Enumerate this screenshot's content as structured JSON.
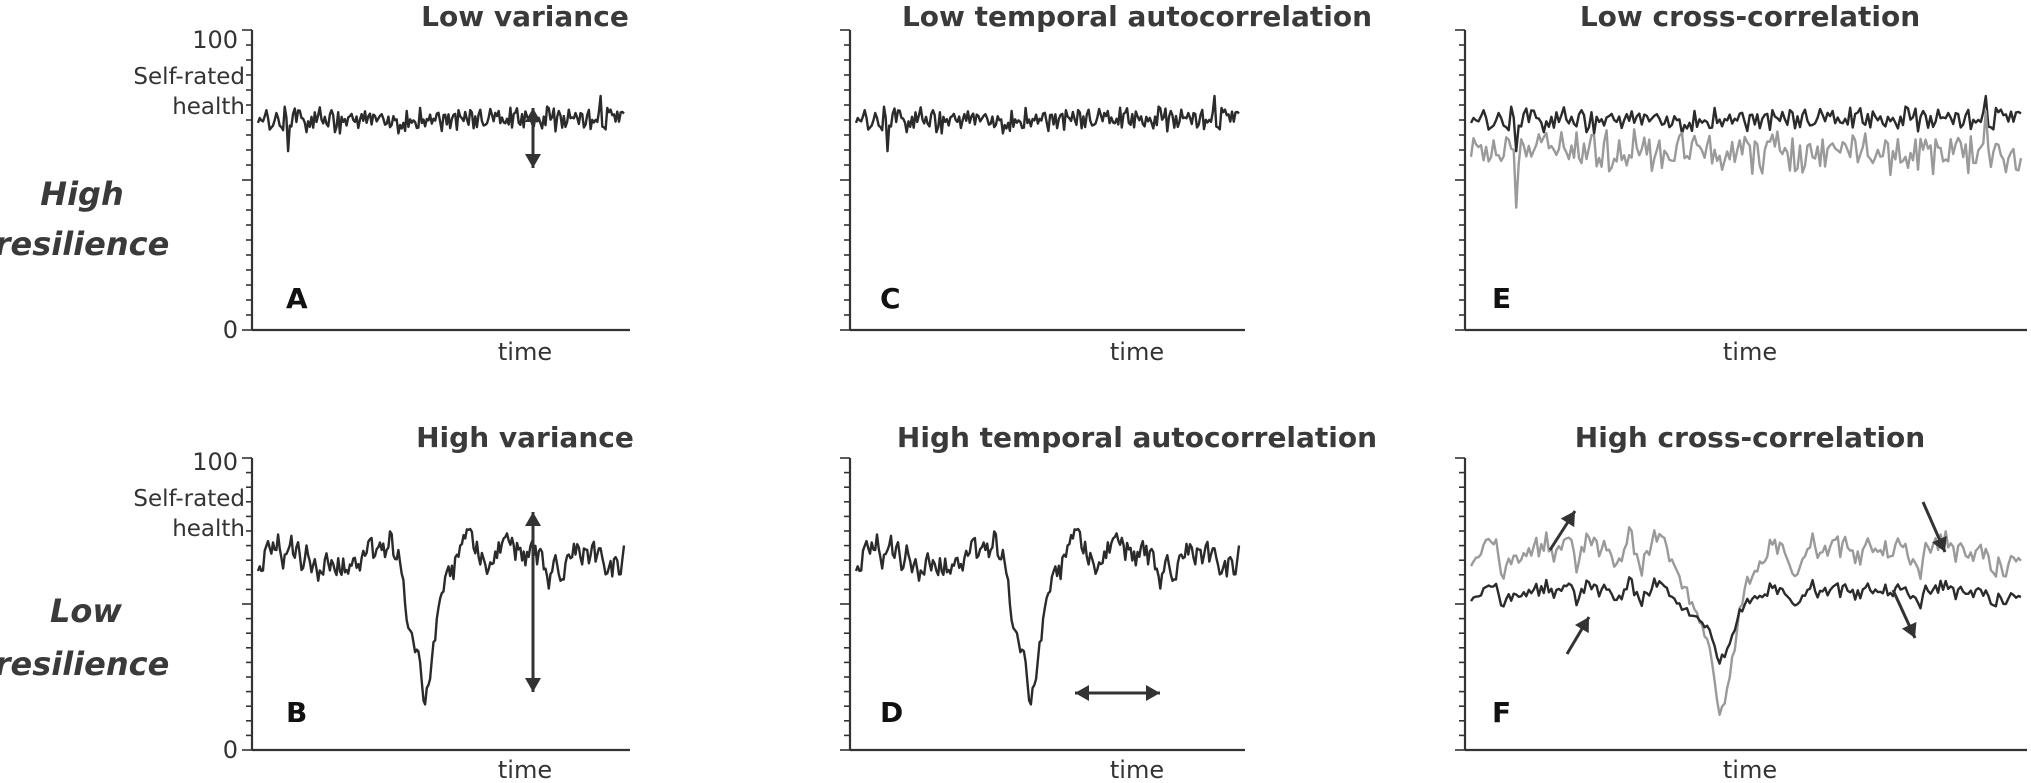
{
  "row_labels": [
    [
      "High",
      "resilience"
    ],
    [
      "Low",
      "resilience"
    ]
  ],
  "y_axis": {
    "label_lines": [
      "Self-rated",
      "health"
    ],
    "tick_min": "0",
    "tick_max": "100"
  },
  "x_axis": {
    "label": "time"
  },
  "colors": {
    "primary_series": "#2b2b2b",
    "secondary_series": "#9a9a9a",
    "axis": "#333333",
    "arrow": "#333333"
  },
  "chart_data": [
    {
      "panel": "A",
      "title": "Low variance",
      "type": "line",
      "ylim": [
        0,
        100
      ],
      "grid": false,
      "series": [
        {
          "color": "dark",
          "mean": 70,
          "amplitude": 4,
          "autocorrelation": "low"
        }
      ],
      "annotations": [
        "vertical double arrow indicating variance"
      ]
    },
    {
      "panel": "B",
      "title": "High variance",
      "type": "line",
      "ylim": [
        0,
        100
      ],
      "grid": false,
      "series": [
        {
          "color": "dark",
          "mean": 65,
          "amplitude": 18,
          "autocorrelation": "high",
          "minimum": 20
        }
      ],
      "annotations": [
        "vertical double arrow indicating variance"
      ]
    },
    {
      "panel": "C",
      "title": "Low temporal autocorrelation",
      "type": "line",
      "ylim": [
        0,
        100
      ],
      "grid": false,
      "series": [
        {
          "color": "dark",
          "mean": 70,
          "amplitude": 4,
          "autocorrelation": "low"
        }
      ],
      "annotations": []
    },
    {
      "panel": "D",
      "title": "High temporal autocorrelation",
      "type": "line",
      "ylim": [
        0,
        100
      ],
      "grid": false,
      "series": [
        {
          "color": "dark",
          "mean": 65,
          "amplitude": 18,
          "autocorrelation": "high",
          "minimum": 20
        }
      ],
      "annotations": [
        "horizontal double arrow indicating autocorrelation width"
      ]
    },
    {
      "panel": "E",
      "title": "Low cross-correlation",
      "type": "line",
      "ylim": [
        0,
        100
      ],
      "grid": false,
      "series": [
        {
          "color": "dark",
          "mean": 70,
          "amplitude": 4,
          "correlated": false
        },
        {
          "color": "gray",
          "mean": 59,
          "amplitude": 7,
          "correlated": false
        }
      ],
      "annotations": []
    },
    {
      "panel": "F",
      "title": "High cross-correlation",
      "type": "line",
      "ylim": [
        0,
        100
      ],
      "grid": false,
      "series": [
        {
          "color": "gray",
          "mean": 66,
          "amplitude": 18,
          "correlated": true,
          "minimum": 20
        },
        {
          "color": "dark",
          "mean": 53,
          "amplitude": 10,
          "correlated": true,
          "minimum": 35
        }
      ],
      "annotations": [
        "up arrows near start",
        "down arrows near end"
      ]
    }
  ]
}
